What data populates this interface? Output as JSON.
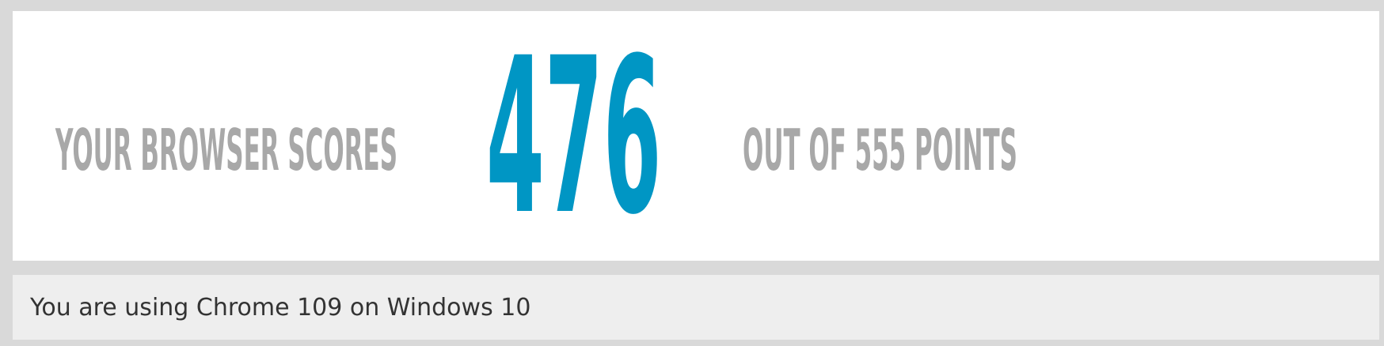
{
  "score": {
    "prefix": "YOUR BROWSER SCORES",
    "value": "476",
    "suffix": "OUT OF 555 POINTS"
  },
  "info": {
    "text": "You are using Chrome 109 on Windows 10"
  },
  "colors": {
    "background": "#d9d9d9",
    "panel": "#ffffff",
    "label": "#a8a8a8",
    "score": "#0096c4",
    "info_panel": "#eeeeee",
    "info_text": "#333333"
  }
}
